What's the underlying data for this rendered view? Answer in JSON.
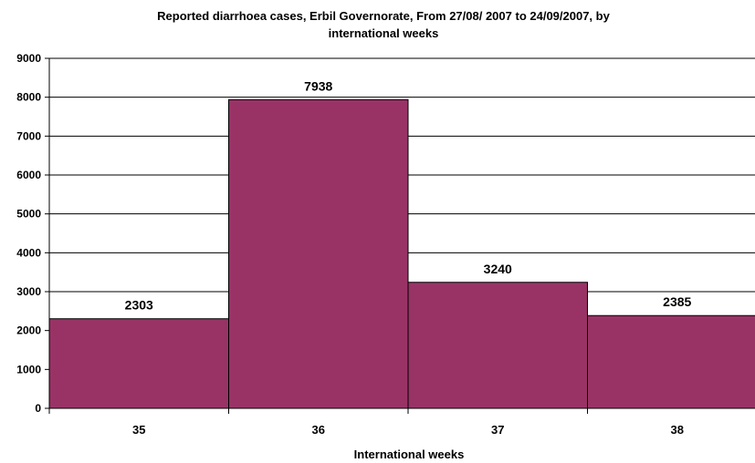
{
  "chart_data": {
    "type": "bar",
    "title_line1": "Reported diarrhoea cases, Erbil Governorate, From 27/08/ 2007 to 24/09/2007, by",
    "title_line2": "international weeks",
    "categories": [
      "35",
      "36",
      "37",
      "38"
    ],
    "values": [
      2303,
      7938,
      3240,
      2385
    ],
    "xlabel": "International weeks",
    "ylabel": "",
    "ylim": [
      0,
      9000
    ],
    "yticks": [
      "0",
      "1000",
      "2000",
      "3000",
      "4000",
      "5000",
      "6000",
      "7000",
      "8000",
      "9000"
    ],
    "grid": true,
    "legend": "none",
    "bar_color": "#993366"
  }
}
